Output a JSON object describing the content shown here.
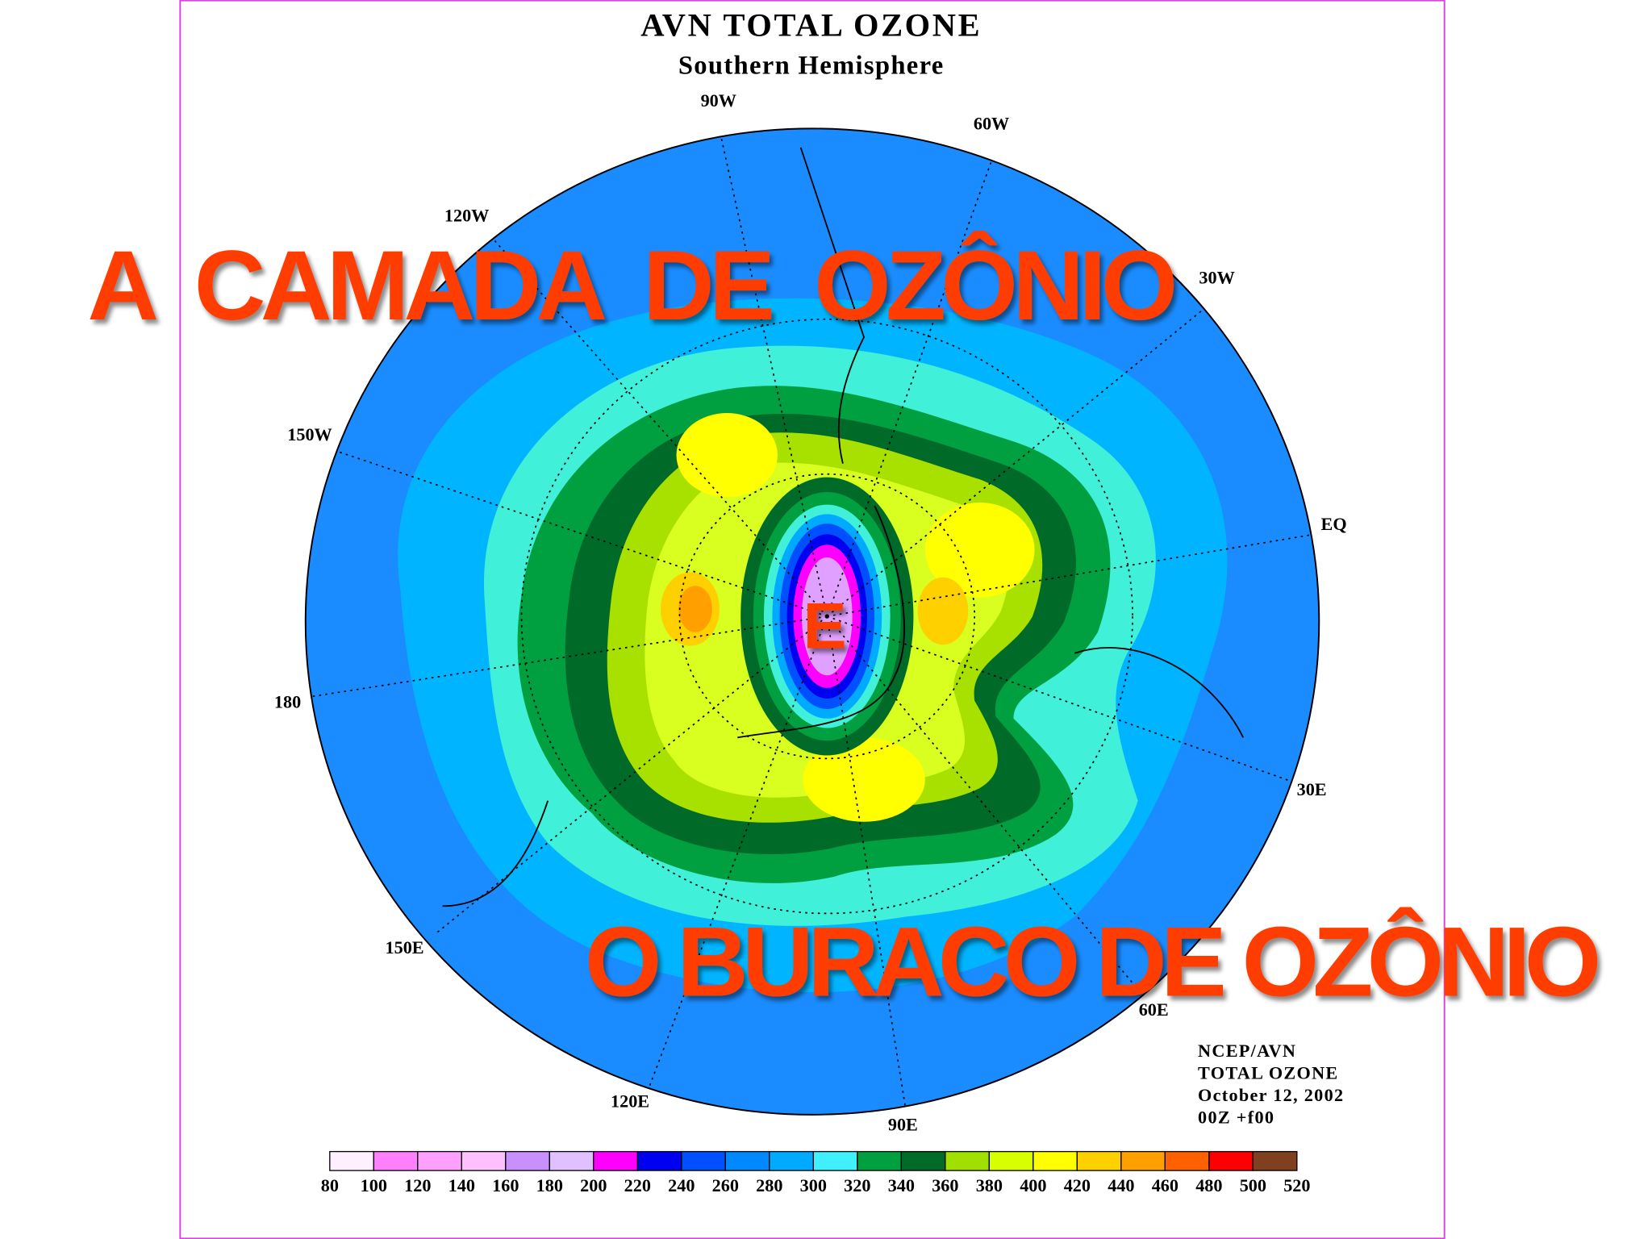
{
  "title": "AVN TOTAL OZONE",
  "subtitle": "Southern Hemisphere",
  "longitude_labels": [
    "90W",
    "60W",
    "120W",
    "30W",
    "150W",
    "EQ",
    "180",
    "30E",
    "150E",
    "60E",
    "120E",
    "90E"
  ],
  "headline": "A  CAMADA  DE  OZÔNIO",
  "connector": "E",
  "subheadline": "O BURACO DE OZÔNIO",
  "info": [
    "NCEP/AVN",
    "TOTAL OZONE",
    "October 12, 2002",
    "00Z +f00"
  ],
  "colorbar": {
    "ticks": [
      80,
      100,
      120,
      140,
      160,
      180,
      200,
      220,
      240,
      260,
      280,
      300,
      320,
      340,
      360,
      380,
      400,
      420,
      440,
      460,
      480,
      500,
      520
    ],
    "colors": [
      "#fff0ff",
      "#ff80ff",
      "#ffa0ff",
      "#ffc0ff",
      "#c890ff",
      "#e0c0ff",
      "#ff00ff",
      "#0000f0",
      "#0050ff",
      "#0088ff",
      "#00aaff",
      "#40f0ff",
      "#00a040",
      "#006a28",
      "#a0e000",
      "#d8ff00",
      "#ffff00",
      "#ffd000",
      "#ffa000",
      "#ff6000",
      "#ff0000",
      "#804020"
    ]
  }
}
